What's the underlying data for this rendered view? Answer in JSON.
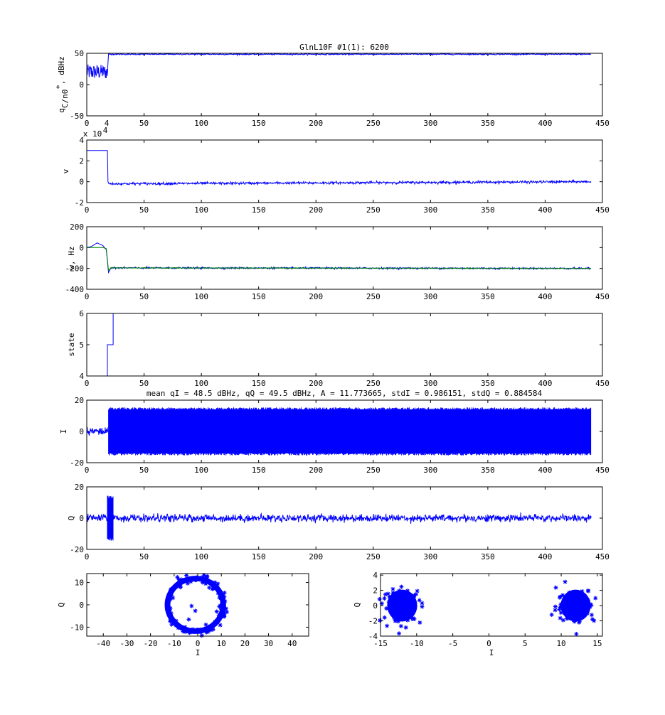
{
  "figure_title": "GlnL10F #1(1): 6200",
  "colors": {
    "blue": "#0000ff",
    "green": "#008000",
    "axes": "#000000"
  },
  "chart_data": [
    {
      "id": "qc",
      "type": "line",
      "title": "GlnL10F #1(1): 6200",
      "ylabel_main": "q",
      "ylabel_sub": "C/n0",
      "ylabel_sup": "*",
      "ylabel_unit": ", dBHz",
      "xlim": [
        0,
        450
      ],
      "ylim": [
        -50,
        50
      ],
      "xticks": [
        0,
        50,
        100,
        150,
        200,
        250,
        300,
        350,
        400,
        450
      ],
      "yticks": [
        -50,
        0,
        50
      ],
      "exponent": "4",
      "series": [
        {
          "color": "#0000ff",
          "x": [
            0,
            4,
            18,
            19,
            440
          ],
          "y": [
            20,
            20,
            20,
            48.5,
            48.5
          ],
          "noise": [
            [
              0,
              18,
              12
            ],
            [
              19,
              440,
              0.5
            ]
          ]
        }
      ]
    },
    {
      "id": "v",
      "type": "line",
      "ylabel": "v",
      "exponent_label": "x 10",
      "exponent": "4",
      "xlim": [
        0,
        450
      ],
      "ylim": [
        -2,
        4
      ],
      "xticks": [
        0,
        50,
        100,
        150,
        200,
        250,
        300,
        350,
        400,
        450
      ],
      "yticks": [
        -2,
        0,
        2,
        4
      ],
      "series": [
        {
          "color": "#0000ff",
          "x": [
            0,
            18,
            18.5,
            19.5,
            440
          ],
          "y": [
            3,
            3,
            0,
            -0.2,
            0
          ],
          "noise": [
            [
              19,
              440,
              0.06
            ]
          ]
        }
      ]
    },
    {
      "id": "w",
      "type": "line",
      "ylabel": "w, Hz",
      "xlim": [
        0,
        450
      ],
      "ylim": [
        -400,
        200
      ],
      "xticks": [
        0,
        50,
        100,
        150,
        200,
        250,
        300,
        350,
        400,
        450
      ],
      "yticks": [
        -400,
        -200,
        0,
        200
      ],
      "series": [
        {
          "color": "#0000ff",
          "x": [
            0,
            4,
            9,
            14,
            17,
            19,
            21,
            440
          ],
          "y": [
            0,
            10,
            45,
            20,
            -20,
            -240,
            -195,
            -200
          ],
          "noise": [
            [
              21,
              440,
              4
            ]
          ]
        },
        {
          "color": "#008000",
          "x": [
            0,
            14,
            17,
            19,
            21,
            440
          ],
          "y": [
            0,
            0,
            -10,
            -220,
            -195,
            -200
          ],
          "noise": [
            [
              21,
              440,
              2
            ]
          ]
        }
      ]
    },
    {
      "id": "state",
      "type": "line",
      "ylabel": "state",
      "xlim": [
        0,
        450
      ],
      "ylim": [
        4,
        6
      ],
      "xticks": [
        0,
        50,
        100,
        150,
        200,
        250,
        300,
        350,
        400,
        450
      ],
      "yticks": [
        4,
        5,
        6
      ],
      "series": [
        {
          "color": "#0000ff",
          "x": [
            18,
            18,
            23,
            23
          ],
          "y": [
            4,
            5,
            5,
            6
          ]
        }
      ]
    },
    {
      "id": "I",
      "type": "line",
      "title": "mean qI = 48.5 dBHz, qQ = 49.5 dBHz, A = 11.773665, stdI = 0.986151, stdQ = 0.884584",
      "ylabel": "I",
      "xlim": [
        0,
        450
      ],
      "ylim": [
        -20,
        20
      ],
      "xticks": [
        0,
        50,
        100,
        150,
        200,
        250,
        300,
        350,
        400,
        450
      ],
      "yticks": [
        -20,
        0,
        20
      ],
      "series": [
        {
          "color": "#0000ff",
          "x": [
            0,
            18,
            19,
            440
          ],
          "y": [
            0,
            0,
            0,
            0
          ],
          "noise": [
            [
              0,
              18,
              1.5
            ]
          ],
          "band": [
            19,
            440,
            -14,
            14
          ]
        }
      ]
    },
    {
      "id": "Q",
      "type": "line",
      "ylabel": "Q",
      "xlim": [
        0,
        450
      ],
      "ylim": [
        -20,
        20
      ],
      "xticks": [
        0,
        50,
        100,
        150,
        200,
        250,
        300,
        350,
        400,
        450
      ],
      "yticks": [
        -20,
        0,
        20
      ],
      "series": [
        {
          "color": "#0000ff",
          "x": [
            0,
            440
          ],
          "y": [
            0,
            0
          ],
          "noise": [
            [
              0,
              440,
              1.2
            ]
          ],
          "band": [
            18,
            23,
            -13,
            13
          ]
        }
      ]
    },
    {
      "id": "iq_raw",
      "type": "scatter",
      "xlabel": "I",
      "ylabel": "Q",
      "xlim": [
        -47,
        47
      ],
      "ylim": [
        -14,
        14
      ],
      "xticks": [
        -40,
        -30,
        -20,
        -10,
        0,
        10,
        20,
        30,
        40
      ],
      "yticks": [
        -10,
        0,
        10
      ],
      "marker": "*",
      "color": "#0000ff",
      "clusters": [
        {
          "kind": "ring",
          "cx": -1,
          "cy": 0,
          "r": 11.8,
          "spread": 1.2
        }
      ]
    },
    {
      "id": "iq_rot",
      "type": "scatter",
      "xlabel": "I",
      "ylabel": "Q",
      "xlim": [
        -15,
        15.7
      ],
      "ylim": [
        -4,
        4.2
      ],
      "xticks": [
        -15,
        -10,
        -5,
        0,
        5,
        10,
        15
      ],
      "yticks": [
        -4,
        -2,
        0,
        2,
        4
      ],
      "marker": "*",
      "color": "#0000ff",
      "clusters": [
        {
          "kind": "blob",
          "cx": -12,
          "cy": 0,
          "sx": 1.3,
          "sy": 1.1
        },
        {
          "kind": "blob",
          "cx": 12,
          "cy": 0,
          "sx": 1.3,
          "sy": 1.1
        }
      ]
    }
  ]
}
